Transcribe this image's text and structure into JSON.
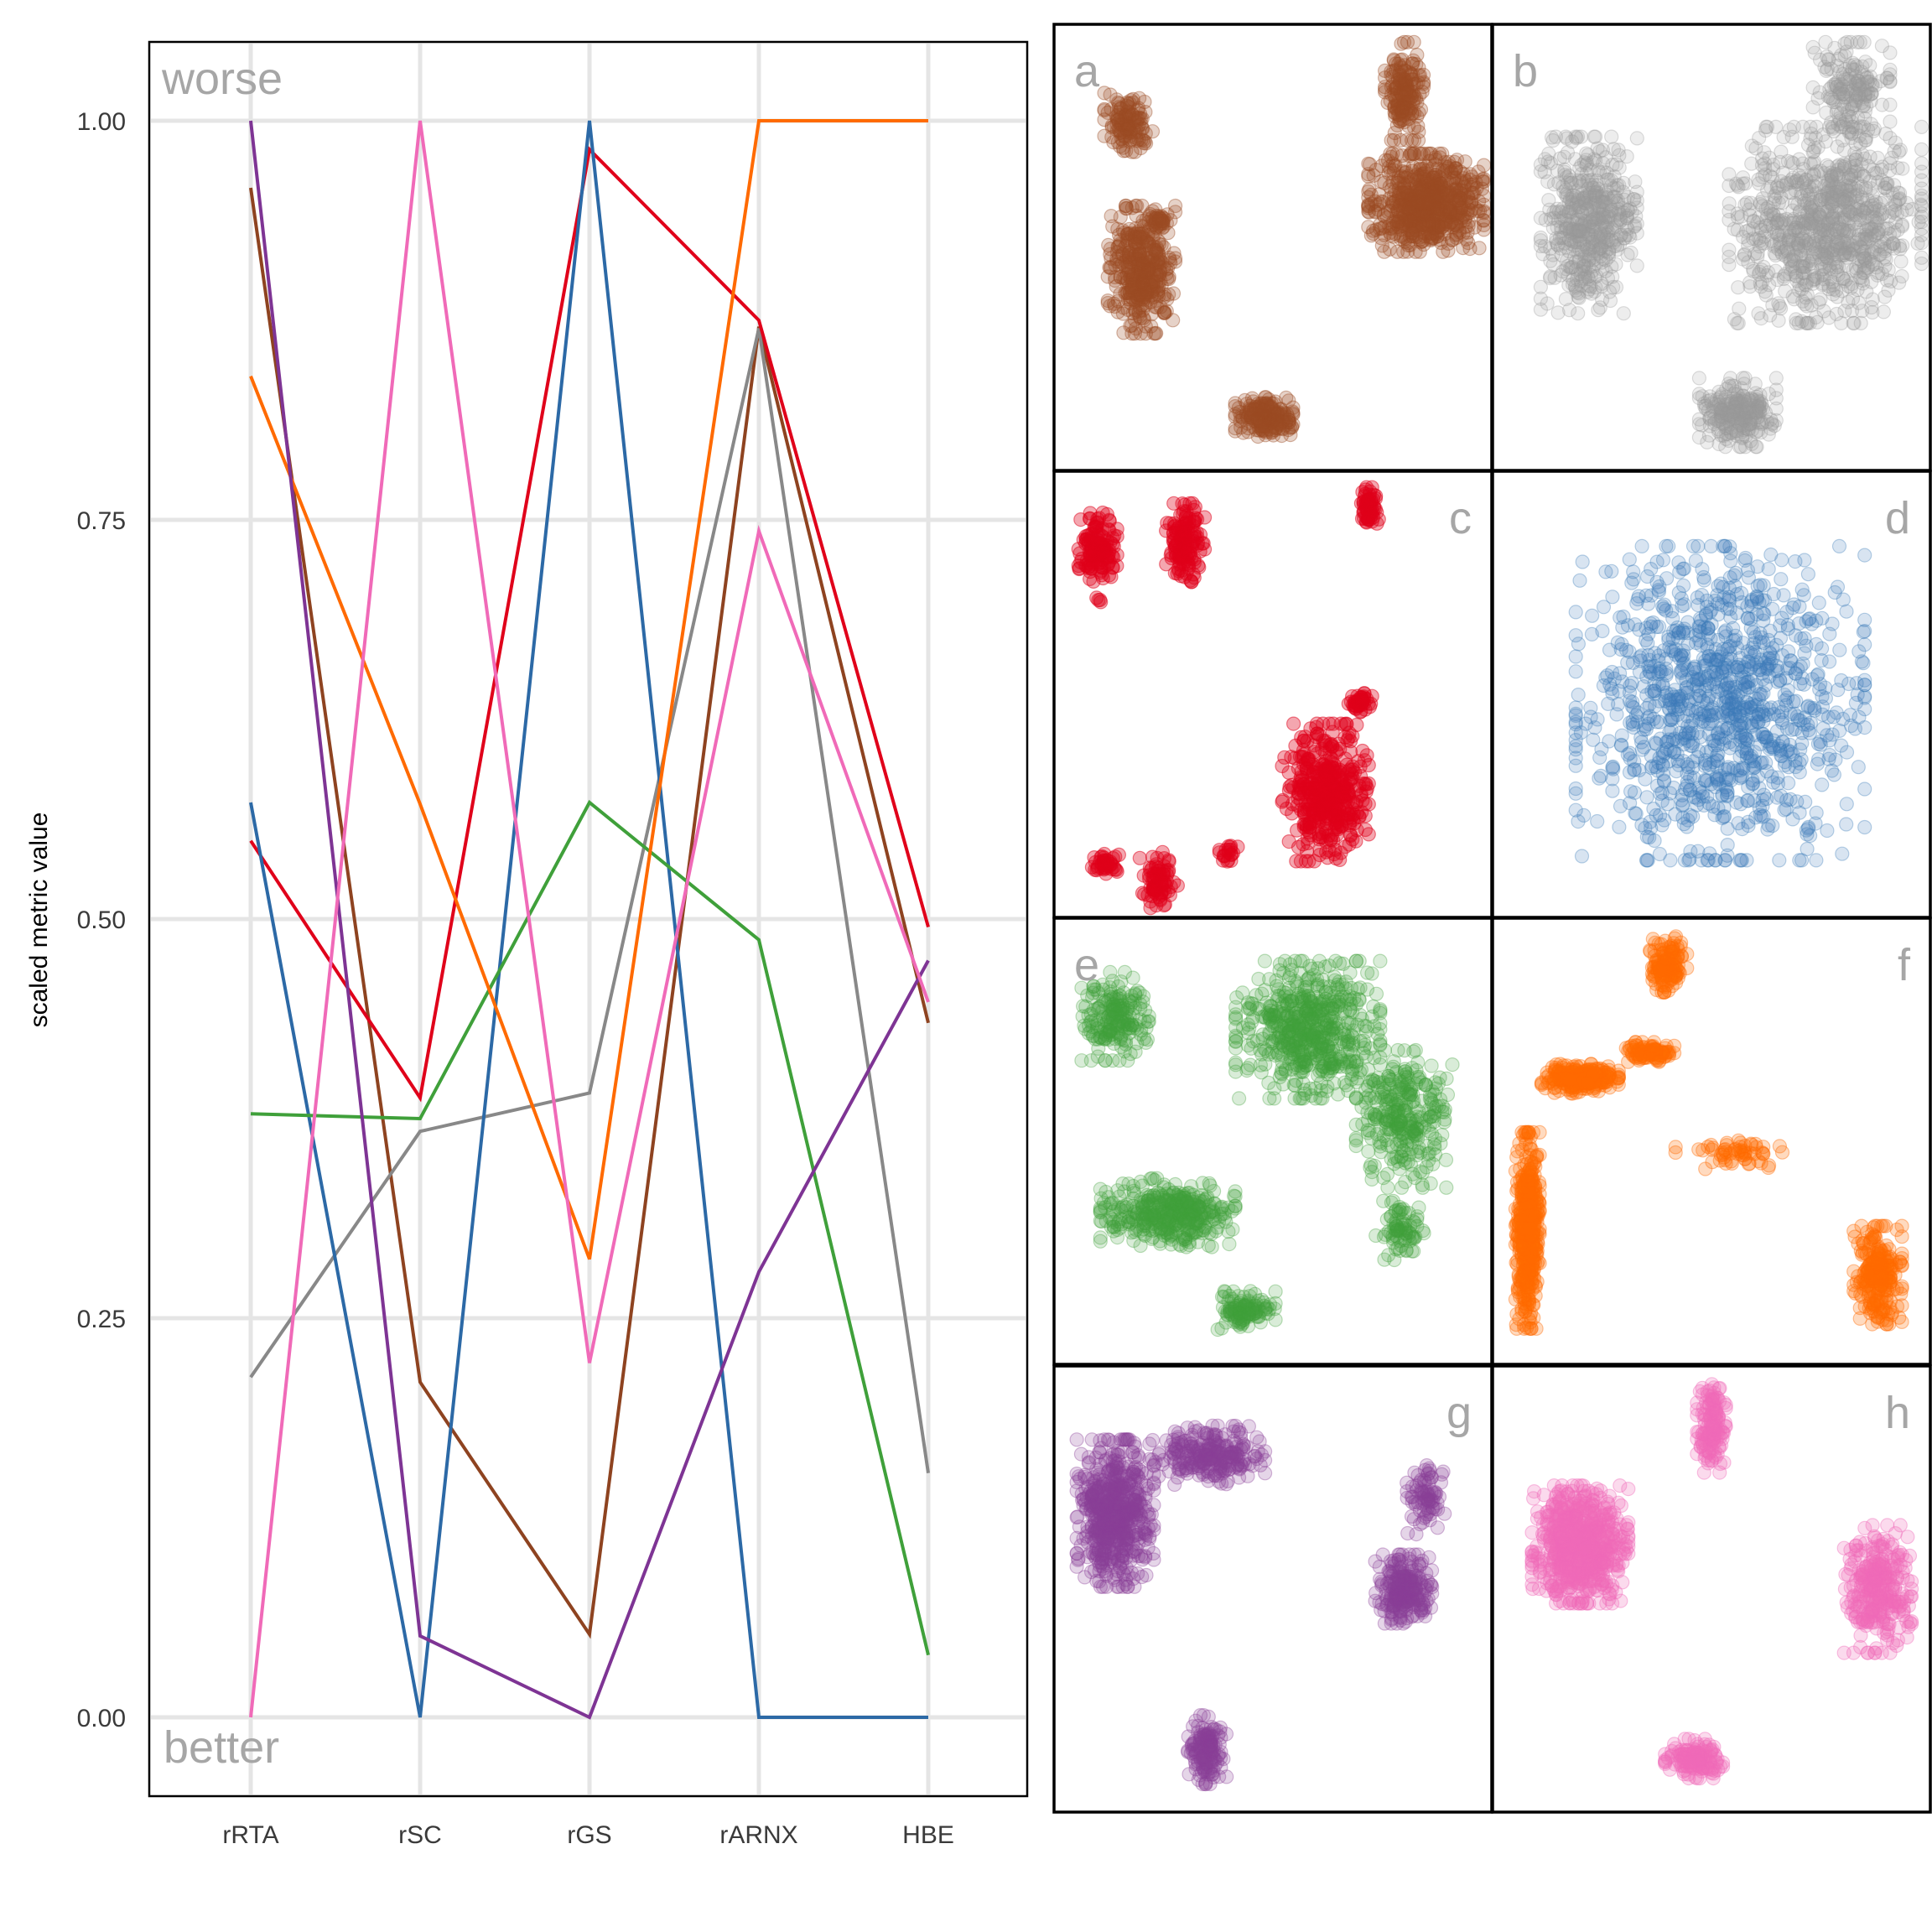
{
  "chart_data": [
    {
      "type": "line",
      "subtype": "parallel-coordinates",
      "title": "",
      "xlabel": "",
      "ylabel": "scaled metric value",
      "categories": [
        "rRTA",
        "rSC",
        "rGS",
        "rARNX",
        "HBE"
      ],
      "yticks": [
        "0.00",
        "0.25",
        "0.50",
        "0.75",
        "1.00"
      ],
      "ylim": [
        -0.05,
        1.05
      ],
      "grid": true,
      "legend": null,
      "annotations": {
        "top": "worse",
        "bottom": "better"
      },
      "series": [
        {
          "name": "a",
          "color": "#8E4320",
          "values": [
            0.958,
            0.21,
            0.052,
            0.871,
            0.435
          ]
        },
        {
          "name": "b",
          "color": "#888888",
          "values": [
            0.213,
            0.367,
            0.391,
            0.87,
            0.153
          ]
        },
        {
          "name": "c",
          "color": "#E0001A",
          "values": [
            0.549,
            0.388,
            0.982,
            0.875,
            0.495
          ]
        },
        {
          "name": "d",
          "color": "#2C69A6",
          "values": [
            0.573,
            0.0,
            1.0,
            0.0,
            0.0
          ]
        },
        {
          "name": "e",
          "color": "#3FA03A",
          "values": [
            0.378,
            0.375,
            0.573,
            0.487,
            0.039
          ]
        },
        {
          "name": "f",
          "color": "#FF6A00",
          "values": [
            0.84,
            0.572,
            0.287,
            1.0,
            1.0
          ]
        },
        {
          "name": "g",
          "color": "#7E3494",
          "values": [
            1.0,
            0.051,
            0.0,
            0.279,
            0.474
          ]
        },
        {
          "name": "h",
          "color": "#F06AB8",
          "values": [
            0.0,
            1.0,
            0.222,
            0.743,
            0.448
          ]
        }
      ]
    },
    {
      "type": "scatter",
      "subtype": "embedding-panels",
      "panels": [
        {
          "label": "a",
          "label_pos": "left",
          "color": "#9A4A22",
          "alpha": 0.25,
          "clusters": [
            [
              0.2,
              0.55,
              0.07,
              0.13,
              380
            ],
            [
              0.17,
              0.22,
              0.05,
              0.06,
              120
            ],
            [
              0.85,
              0.4,
              0.12,
              0.1,
              700
            ],
            [
              0.8,
              0.15,
              0.04,
              0.1,
              180
            ],
            [
              0.48,
              0.88,
              0.06,
              0.04,
              200
            ],
            [
              0.24,
              0.44,
              0.025,
              0.02,
              30
            ]
          ]
        },
        {
          "label": "b",
          "label_pos": "left",
          "color": "#999999",
          "alpha": 0.18,
          "clusters": [
            [
              0.22,
              0.45,
              0.1,
              0.18,
              500
            ],
            [
              0.76,
              0.45,
              0.2,
              0.2,
              900
            ],
            [
              0.82,
              0.15,
              0.08,
              0.1,
              180
            ],
            [
              0.56,
              0.87,
              0.08,
              0.07,
              250
            ]
          ]
        },
        {
          "label": "c",
          "label_pos": "right",
          "color": "#E0001A",
          "alpha": 0.35,
          "clusters": [
            [
              0.1,
              0.17,
              0.04,
              0.07,
              140
            ],
            [
              0.3,
              0.16,
              0.04,
              0.08,
              140
            ],
            [
              0.72,
              0.08,
              0.02,
              0.04,
              60
            ],
            [
              0.7,
              0.52,
              0.025,
              0.02,
              40
            ],
            [
              0.62,
              0.72,
              0.09,
              0.14,
              420
            ],
            [
              0.12,
              0.88,
              0.03,
              0.02,
              40
            ],
            [
              0.24,
              0.92,
              0.04,
              0.06,
              80
            ],
            [
              0.4,
              0.86,
              0.02,
              0.02,
              20
            ],
            [
              0.1,
              0.29,
              0.01,
              0.01,
              4
            ]
          ]
        },
        {
          "label": "d",
          "label_pos": "right",
          "color": "#3A7AB8",
          "alpha": 0.2,
          "clusters": [
            [
              0.52,
              0.52,
              0.3,
              0.32,
              1100
            ]
          ]
        },
        {
          "label": "e",
          "label_pos": "left",
          "color": "#3FA03A",
          "alpha": 0.2,
          "clusters": [
            [
              0.14,
              0.22,
              0.07,
              0.09,
              200
            ],
            [
              0.58,
              0.25,
              0.15,
              0.14,
              600
            ],
            [
              0.8,
              0.45,
              0.1,
              0.14,
              300
            ],
            [
              0.26,
              0.66,
              0.14,
              0.07,
              400
            ],
            [
              0.44,
              0.88,
              0.06,
              0.04,
              120
            ],
            [
              0.79,
              0.7,
              0.05,
              0.06,
              80
            ]
          ]
        },
        {
          "label": "f",
          "label_pos": "right",
          "color": "#FF6A00",
          "alpha": 0.25,
          "clusters": [
            [
              0.08,
              0.7,
              0.025,
              0.2,
              500
            ],
            [
              0.2,
              0.36,
              0.08,
              0.03,
              250
            ],
            [
              0.36,
              0.3,
              0.05,
              0.02,
              100
            ],
            [
              0.4,
              0.1,
              0.04,
              0.06,
              150
            ],
            [
              0.55,
              0.53,
              0.12,
              0.03,
              60
            ],
            [
              0.88,
              0.8,
              0.05,
              0.1,
              250
            ]
          ]
        },
        {
          "label": "g",
          "label_pos": "right",
          "color": "#8A3E98",
          "alpha": 0.22,
          "clusters": [
            [
              0.14,
              0.33,
              0.08,
              0.15,
              600
            ],
            [
              0.35,
              0.2,
              0.12,
              0.06,
              250
            ],
            [
              0.8,
              0.5,
              0.06,
              0.07,
              250
            ],
            [
              0.85,
              0.3,
              0.04,
              0.07,
              80
            ],
            [
              0.35,
              0.86,
              0.04,
              0.07,
              150
            ]
          ]
        },
        {
          "label": "h",
          "label_pos": "right",
          "color": "#F06AB8",
          "alpha": 0.25,
          "clusters": [
            [
              0.2,
              0.4,
              0.1,
              0.12,
              700
            ],
            [
              0.5,
              0.14,
              0.03,
              0.09,
              150
            ],
            [
              0.88,
              0.5,
              0.07,
              0.13,
              300
            ],
            [
              0.46,
              0.88,
              0.06,
              0.04,
              150
            ]
          ]
        }
      ]
    }
  ],
  "left_chart": {
    "ylabel": "scaled metric value",
    "annotation_top": "worse",
    "annotation_bottom": "better"
  }
}
